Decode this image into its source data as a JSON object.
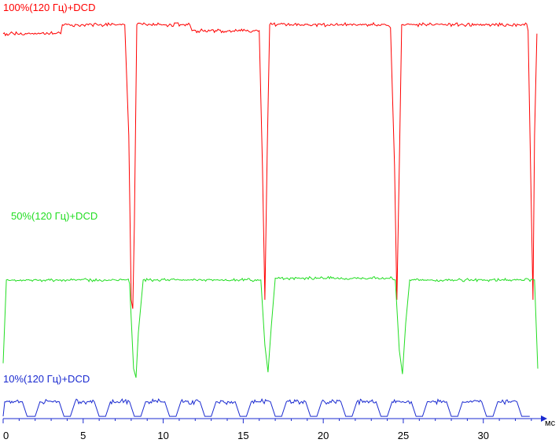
{
  "chart_data": {
    "type": "line",
    "title": "",
    "xlabel": "мс",
    "ylabel": "",
    "xlim": [
      0,
      33.5
    ],
    "x_ticks": [
      0,
      5,
      10,
      15,
      20,
      25,
      30
    ],
    "grid": false,
    "legend": "inline labels",
    "series": [
      {
        "name": "100%(120 Гц)+DCD",
        "color": "#ff0000",
        "frame_ms": 8.33,
        "high_level": 0.94,
        "min_level": 0.02,
        "dip_offsets_ms": [
          7.9,
          16.2,
          24.6,
          33.0
        ],
        "points": [
          [
            0,
            0.94
          ],
          [
            3.6,
            0.94
          ],
          [
            3.7,
            0.97
          ],
          [
            7.6,
            0.97
          ],
          [
            7.85,
            0.6
          ],
          [
            8.0,
            0.05
          ],
          [
            8.1,
            0.02
          ],
          [
            8.2,
            0.3
          ],
          [
            8.35,
            0.97
          ],
          [
            11.8,
            0.95
          ],
          [
            16.0,
            0.95
          ],
          [
            16.2,
            0.5
          ],
          [
            16.35,
            0.05
          ],
          [
            16.5,
            0.55
          ],
          [
            16.65,
            0.97
          ],
          [
            24.2,
            0.96
          ],
          [
            24.45,
            0.5
          ],
          [
            24.6,
            0.05
          ],
          [
            24.75,
            0.5
          ],
          [
            24.9,
            0.97
          ],
          [
            32.8,
            0.95
          ],
          [
            32.95,
            0.5
          ],
          [
            33.1,
            0.05
          ],
          [
            33.2,
            0.6
          ],
          [
            33.35,
            0.94
          ]
        ]
      },
      {
        "name": "50%(120 Гц)+DCD",
        "color": "#22dd22",
        "frame_ms": 8.33,
        "high_level": 0.54,
        "min_level": 0.0,
        "points": [
          [
            0,
            0.08
          ],
          [
            0.2,
            0.54
          ],
          [
            7.6,
            0.54
          ],
          [
            7.9,
            0.52
          ],
          [
            8.15,
            0.05
          ],
          [
            8.3,
            0.0
          ],
          [
            8.45,
            0.25
          ],
          [
            8.75,
            0.54
          ],
          [
            16.1,
            0.54
          ],
          [
            16.35,
            0.18
          ],
          [
            16.55,
            0.03
          ],
          [
            16.75,
            0.28
          ],
          [
            17.0,
            0.55
          ],
          [
            24.5,
            0.54
          ],
          [
            24.75,
            0.15
          ],
          [
            24.95,
            0.02
          ],
          [
            25.15,
            0.3
          ],
          [
            25.4,
            0.54
          ],
          [
            33.2,
            0.54
          ],
          [
            33.4,
            0.05
          ]
        ]
      },
      {
        "name": "10%(120 Гц)+DCD",
        "color": "#1a2ad0",
        "half_period_ms": 4.17,
        "high_level": 0.55,
        "low_level": 0.05,
        "points": [
          [
            0,
            0.05
          ],
          [
            0.1,
            0.55
          ],
          [
            1.2,
            0.55
          ],
          [
            1.5,
            0.05
          ],
          [
            2.0,
            0.05
          ],
          [
            2.3,
            0.55
          ],
          [
            3.5,
            0.55
          ],
          [
            3.8,
            0.05
          ],
          [
            4.2,
            0.05
          ],
          [
            4.5,
            0.55
          ],
          [
            5.7,
            0.55
          ],
          [
            6.0,
            0.05
          ],
          [
            6.4,
            0.05
          ],
          [
            6.7,
            0.55
          ],
          [
            7.9,
            0.55
          ],
          [
            8.2,
            0.05
          ],
          [
            8.6,
            0.05
          ],
          [
            8.9,
            0.55
          ],
          [
            10.1,
            0.55
          ],
          [
            10.4,
            0.05
          ],
          [
            10.8,
            0.05
          ],
          [
            11.1,
            0.55
          ],
          [
            12.3,
            0.55
          ],
          [
            12.6,
            0.05
          ],
          [
            13.0,
            0.05
          ],
          [
            13.3,
            0.55
          ],
          [
            14.5,
            0.55
          ],
          [
            14.8,
            0.05
          ],
          [
            15.2,
            0.05
          ],
          [
            15.5,
            0.55
          ],
          [
            16.7,
            0.55
          ],
          [
            17.0,
            0.05
          ],
          [
            17.4,
            0.05
          ],
          [
            17.7,
            0.55
          ],
          [
            18.9,
            0.55
          ],
          [
            19.2,
            0.05
          ],
          [
            19.6,
            0.05
          ],
          [
            19.9,
            0.55
          ],
          [
            21.1,
            0.55
          ],
          [
            21.4,
            0.05
          ],
          [
            21.8,
            0.05
          ],
          [
            22.1,
            0.55
          ],
          [
            23.3,
            0.55
          ],
          [
            23.6,
            0.05
          ],
          [
            24.0,
            0.05
          ],
          [
            24.3,
            0.55
          ],
          [
            25.5,
            0.55
          ],
          [
            25.8,
            0.05
          ],
          [
            26.2,
            0.05
          ],
          [
            26.5,
            0.55
          ],
          [
            27.7,
            0.55
          ],
          [
            28.0,
            0.05
          ],
          [
            28.4,
            0.05
          ],
          [
            28.7,
            0.55
          ],
          [
            29.9,
            0.55
          ],
          [
            30.2,
            0.05
          ],
          [
            30.6,
            0.05
          ],
          [
            30.9,
            0.55
          ],
          [
            32.1,
            0.55
          ],
          [
            32.4,
            0.05
          ],
          [
            32.9,
            0.05
          ]
        ]
      }
    ]
  }
}
